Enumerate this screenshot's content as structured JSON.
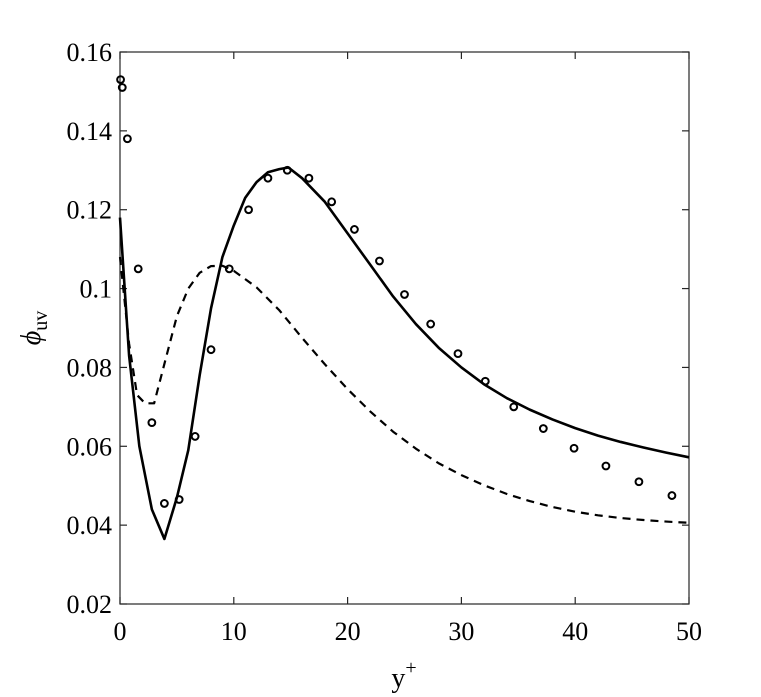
{
  "chart_data": {
    "type": "line",
    "xlabel": "y",
    "xlabel_superscript": "+",
    "ylabel": "ϕ",
    "ylabel_subscript": "uv",
    "xlim": [
      0,
      50
    ],
    "ylim": [
      0.02,
      0.16
    ],
    "x_ticks": [
      0,
      10,
      20,
      30,
      40,
      50
    ],
    "y_ticks": [
      0.02,
      0.04,
      0.06,
      0.08,
      0.1,
      0.12,
      0.14,
      0.16
    ],
    "x_tick_labels": [
      "0",
      "10",
      "20",
      "30",
      "40",
      "50"
    ],
    "y_tick_labels": [
      "0.02",
      "0.04",
      "0.06",
      "0.08",
      "0.1",
      "0.12",
      "0.14",
      "0.16"
    ],
    "grid": false,
    "colors": {
      "line": "#000000",
      "axes": "#262626"
    },
    "series": [
      {
        "style": "solid",
        "x": [
          0,
          0.8,
          1.7,
          2.8,
          3.9,
          5.0,
          6.0,
          7.0,
          8.0,
          9.0,
          10.0,
          11.0,
          12.0,
          13.0,
          14.0,
          14.8,
          16,
          18,
          20,
          22,
          24,
          26,
          28,
          30,
          32,
          34,
          36,
          38,
          40,
          42,
          44,
          46,
          48,
          50
        ],
        "y": [
          0.118,
          0.083,
          0.06,
          0.044,
          0.0365,
          0.047,
          0.059,
          0.078,
          0.095,
          0.108,
          0.116,
          0.123,
          0.127,
          0.1295,
          0.1303,
          0.1307,
          0.128,
          0.122,
          0.114,
          0.106,
          0.098,
          0.091,
          0.085,
          0.08,
          0.0757,
          0.0722,
          0.0693,
          0.0668,
          0.0646,
          0.0627,
          0.0611,
          0.0597,
          0.0584,
          0.0572
        ]
      },
      {
        "style": "dashed",
        "x": [
          0,
          0.8,
          1.5,
          2.2,
          3.0,
          4.0,
          5.0,
          6.0,
          7.0,
          8.0,
          9.0,
          10.0,
          12.0,
          14.0,
          16.0,
          18.0,
          20,
          22,
          24,
          26,
          28,
          30,
          32,
          34,
          36,
          38,
          40,
          42,
          44,
          46,
          48,
          50
        ],
        "y": [
          0.108,
          0.086,
          0.073,
          0.0709,
          0.0709,
          0.082,
          0.093,
          0.1,
          0.104,
          0.1057,
          0.1058,
          0.1045,
          0.1003,
          0.0945,
          0.0875,
          0.0808,
          0.0745,
          0.0688,
          0.0637,
          0.0594,
          0.0557,
          0.0527,
          0.0501,
          0.0479,
          0.0461,
          0.0446,
          0.0434,
          0.0425,
          0.0418,
          0.0413,
          0.0409,
          0.0406
        ]
      },
      {
        "style": "markers",
        "marker": "circle",
        "x": [
          0.05,
          0.2,
          0.65,
          1.6,
          2.8,
          3.9,
          5.2,
          6.6,
          8.0,
          9.6,
          11.3,
          13.0,
          14.7,
          16.6,
          18.6,
          20.6,
          22.8,
          25.0,
          27.3,
          29.7,
          32.1,
          34.6,
          37.2,
          39.9,
          42.7,
          45.6,
          48.5
        ],
        "y": [
          0.153,
          0.151,
          0.138,
          0.105,
          0.066,
          0.0455,
          0.0465,
          0.0625,
          0.0845,
          0.105,
          0.12,
          0.128,
          0.13,
          0.128,
          0.122,
          0.115,
          0.107,
          0.0985,
          0.091,
          0.0835,
          0.0765,
          0.07,
          0.0645,
          0.0595,
          0.055,
          0.051,
          0.0475
        ]
      }
    ]
  }
}
